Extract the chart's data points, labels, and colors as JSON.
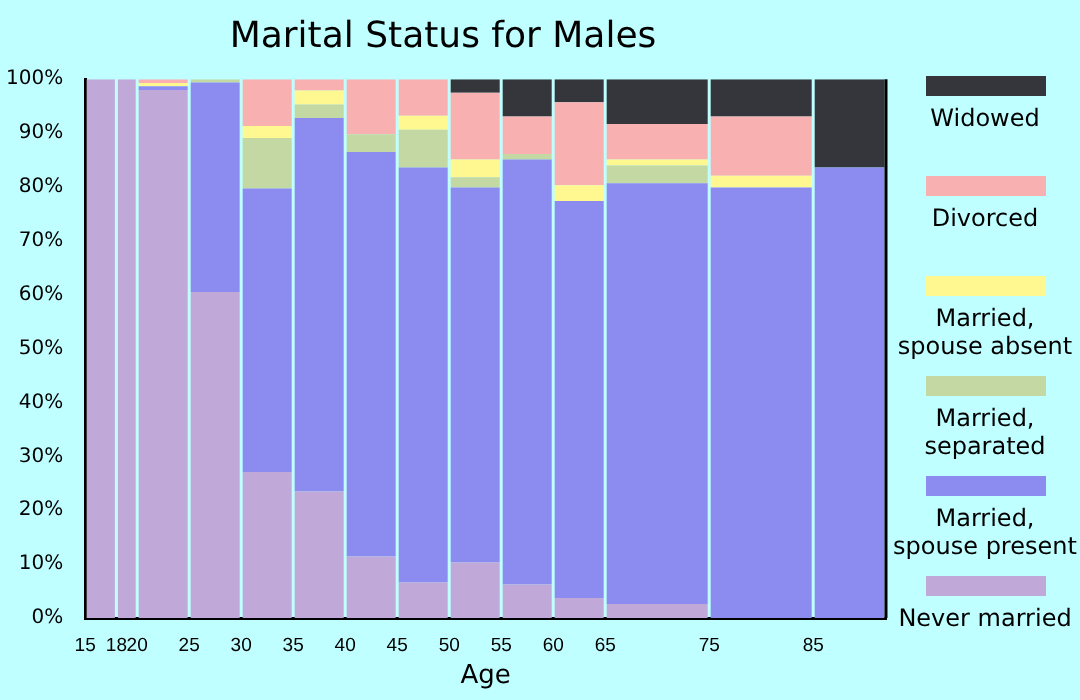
{
  "chart_data": {
    "type": "bar",
    "title": "Marital Status for Males",
    "xlabel": "Age",
    "stacked": true,
    "x": [
      16.5,
      19,
      22.5,
      27.5,
      32.5,
      37.5,
      42.5,
      47.5,
      52.5,
      57.5,
      62.5,
      70,
      80,
      88.5
    ],
    "xlim": [
      15,
      92
    ],
    "xticks": [
      15,
      18,
      20,
      25,
      30,
      35,
      40,
      45,
      50,
      55,
      60,
      65,
      75,
      85
    ],
    "ylim": [
      0,
      100
    ],
    "yticks": [
      {
        "value": 0,
        "label": "0%"
      },
      {
        "value": 10,
        "label": "10%"
      },
      {
        "value": 20,
        "label": "20%"
      },
      {
        "value": 30,
        "label": "30%"
      },
      {
        "value": 40,
        "label": "40%"
      },
      {
        "value": 50,
        "label": "50%"
      },
      {
        "value": 60,
        "label": "60%"
      },
      {
        "value": 70,
        "label": "70%"
      },
      {
        "value": 80,
        "label": "80%"
      },
      {
        "value": 90,
        "label": "90%"
      },
      {
        "value": 100,
        "label": "100%"
      }
    ],
    "grid": false,
    "legend": "right",
    "series": [
      {
        "name": "Never married",
        "color": "#c0a8d8",
        "values": [
          100,
          100,
          98,
          60.5,
          27.1,
          23.5,
          11.4,
          6.6,
          10.3,
          6.2,
          3.7,
          2.6,
          0,
          0
        ]
      },
      {
        "name": "Married, spouse present",
        "color": "#8c8cf0",
        "values": [
          0,
          0,
          0.7,
          38.9,
          52.6,
          69.3,
          75.1,
          77,
          69.6,
          78.9,
          73.7,
          78.1,
          79.9,
          83.6
        ]
      },
      {
        "name": "Married, separated",
        "color": "#c4d8a4",
        "values": [
          0,
          0,
          0,
          0.6,
          9.4,
          2.5,
          3.3,
          7,
          1.9,
          1,
          0,
          3.3,
          0,
          0
        ]
      },
      {
        "name": "Married, spouse absent",
        "color": "#fff890",
        "values": [
          0,
          0,
          0.6,
          0,
          2.2,
          2.6,
          0,
          2.6,
          3.3,
          0,
          2.9,
          1.1,
          2.2,
          0
        ]
      },
      {
        "name": "Divorced",
        "color": "#f8b0b0",
        "values": [
          0,
          0,
          0.7,
          0,
          8.7,
          2.1,
          10.2,
          6.8,
          12.4,
          7,
          15.4,
          6.6,
          11,
          0
        ]
      },
      {
        "name": "Widowed",
        "color": "#34363c",
        "values": [
          0,
          0,
          0,
          0,
          0,
          0,
          0,
          0,
          2.5,
          6.9,
          4.3,
          8.3,
          6.9,
          16.4
        ]
      }
    ]
  }
}
